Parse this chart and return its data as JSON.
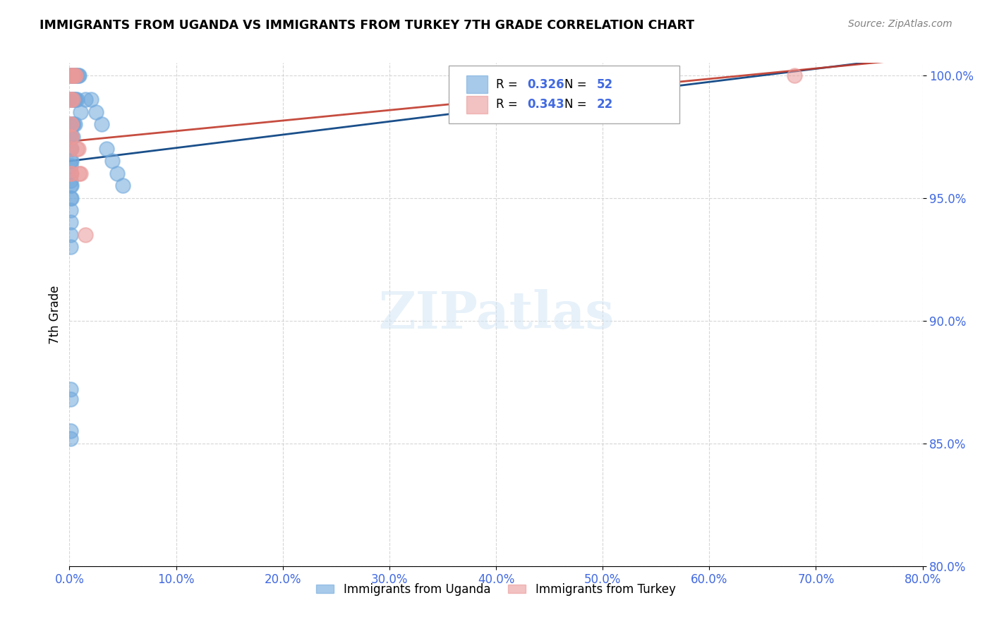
{
  "title": "IMMIGRANTS FROM UGANDA VS IMMIGRANTS FROM TURKEY 7TH GRADE CORRELATION CHART",
  "source": "Source: ZipAtlas.com",
  "xlabel_bottom": "",
  "ylabel": "7th Grade",
  "legend_label1": "Immigrants from Uganda",
  "legend_label2": "Immigrants from Turkey",
  "R1": 0.326,
  "N1": 52,
  "R2": 0.343,
  "N2": 22,
  "color1": "#6fa8dc",
  "color2": "#ea9999",
  "trendline_color1": "#1a4f8a",
  "trendline_color2": "#c0392b",
  "xlim": [
    0.0,
    0.8
  ],
  "ylim": [
    0.8,
    1.005
  ],
  "xticks": [
    0.0,
    0.1,
    0.2,
    0.3,
    0.4,
    0.5,
    0.6,
    0.7,
    0.8
  ],
  "yticks": [
    0.8,
    0.85,
    0.9,
    0.95,
    1.0
  ],
  "watermark": "ZIPatlas",
  "uganda_x": [
    0.001,
    0.002,
    0.003,
    0.004,
    0.005,
    0.006,
    0.007,
    0.008,
    0.009,
    0.001,
    0.002,
    0.003,
    0.004,
    0.005,
    0.006,
    0.007,
    0.001,
    0.002,
    0.003,
    0.004,
    0.001,
    0.002,
    0.003,
    0.001,
    0.002,
    0.001,
    0.002,
    0.001,
    0.001,
    0.001,
    0.005,
    0.01,
    0.015,
    0.02,
    0.025,
    0.03,
    0.001,
    0.002,
    0.001,
    0.002,
    0.001,
    0.001,
    0.001,
    0.001,
    0.035,
    0.04,
    0.045,
    0.05,
    0.001,
    0.001,
    0.001,
    0.001
  ],
  "uganda_y": [
    1.0,
    1.0,
    1.0,
    1.0,
    1.0,
    1.0,
    1.0,
    1.0,
    1.0,
    0.99,
    0.99,
    0.99,
    0.99,
    0.99,
    0.99,
    0.99,
    0.98,
    0.98,
    0.98,
    0.98,
    0.975,
    0.975,
    0.975,
    0.97,
    0.97,
    0.965,
    0.965,
    0.963,
    0.96,
    0.957,
    0.98,
    0.985,
    0.99,
    0.99,
    0.985,
    0.98,
    0.955,
    0.955,
    0.95,
    0.95,
    0.945,
    0.94,
    0.935,
    0.93,
    0.97,
    0.965,
    0.96,
    0.955,
    0.872,
    0.868,
    0.855,
    0.852
  ],
  "turkey_x": [
    0.001,
    0.002,
    0.003,
    0.004,
    0.005,
    0.006,
    0.001,
    0.002,
    0.003,
    0.001,
    0.002,
    0.001,
    0.002,
    0.001,
    0.007,
    0.008,
    0.009,
    0.01,
    0.001,
    0.002,
    0.015,
    0.68
  ],
  "turkey_y": [
    1.0,
    1.0,
    1.0,
    1.0,
    1.0,
    1.0,
    0.99,
    0.99,
    0.99,
    0.98,
    0.98,
    0.975,
    0.975,
    0.97,
    0.97,
    0.97,
    0.96,
    0.96,
    0.96,
    0.96,
    0.935,
    1.0
  ]
}
